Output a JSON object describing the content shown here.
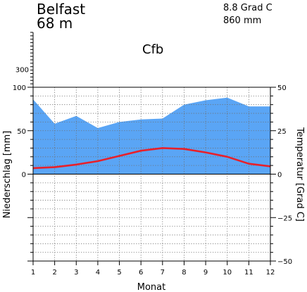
{
  "header": {
    "station": "Belfast",
    "elevation": "68  m",
    "mean_temperature": "8.8 Grad C",
    "annual_precipitation": "860 mm",
    "climate_class": "Cfb"
  },
  "chart_data": {
    "type": "area",
    "x": [
      1,
      2,
      3,
      4,
      5,
      6,
      7,
      8,
      9,
      10,
      11,
      12
    ],
    "xlabel": "Monat",
    "precipitation": {
      "axis_label": "Niederschlag [mm]",
      "values": [
        86,
        58,
        67,
        53,
        60,
        63,
        64,
        80,
        85,
        88,
        78,
        78
      ],
      "ticks": [
        0,
        50,
        100
      ],
      "upper_tick": 300,
      "color": "#5aa5f5"
    },
    "temperature": {
      "axis_label": "Temperatur [Grad C]",
      "values": [
        3.5,
        4.0,
        5.5,
        7.5,
        10.5,
        13.5,
        15.0,
        14.5,
        12.5,
        10.0,
        6.0,
        4.5
      ],
      "ylim": [
        -50,
        50
      ],
      "ticks": [
        -50,
        -25,
        0,
        25,
        50
      ],
      "color": "#e8202a"
    },
    "grid": true
  }
}
